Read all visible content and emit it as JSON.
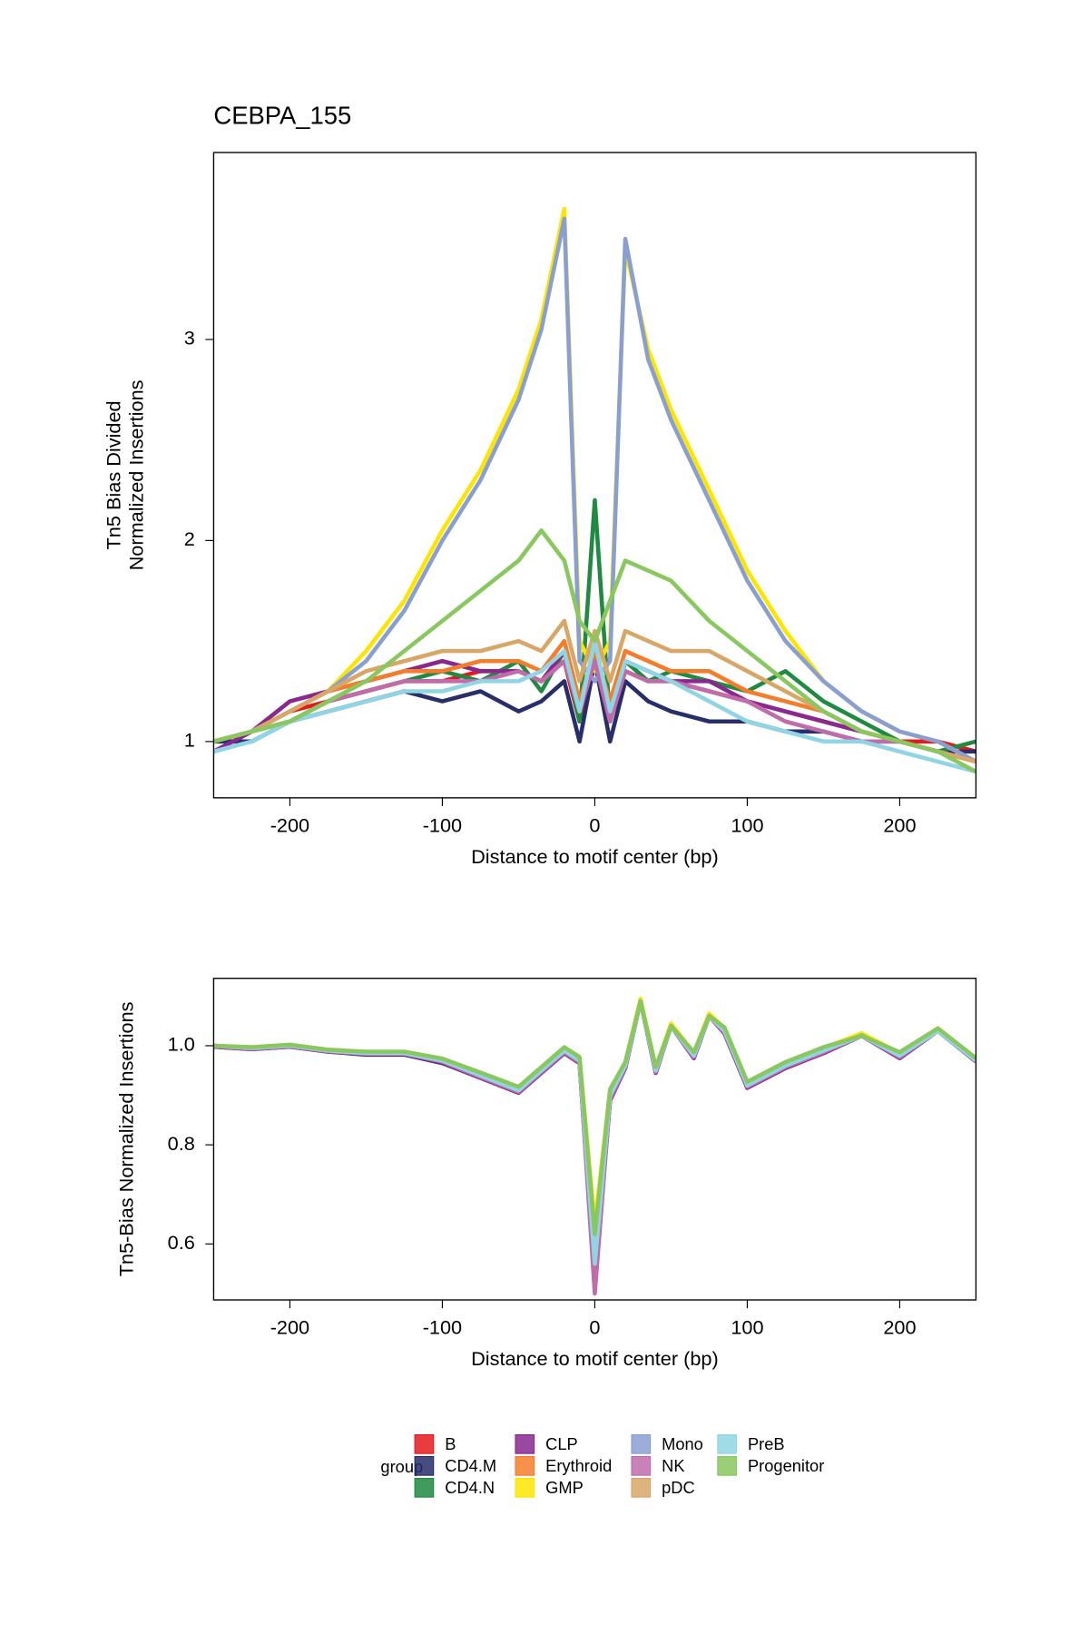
{
  "legend_title": "group",
  "chart_data": [
    {
      "type": "line",
      "title": "CEBPA_155",
      "xlabel": "Distance to motif center (bp)",
      "ylabel": [
        "Tn5 Bias Divided",
        "Normalized Insertions"
      ],
      "x": [
        -250,
        -225,
        -200,
        -175,
        -150,
        -125,
        -100,
        -75,
        -50,
        -35,
        -20,
        -10,
        0,
        10,
        20,
        35,
        50,
        75,
        100,
        125,
        150,
        175,
        200,
        225,
        250
      ],
      "xlim": [
        -250,
        250
      ],
      "xticks": [
        -200,
        -100,
        0,
        100,
        200
      ],
      "ylim": [
        0.72,
        3.93
      ],
      "yticks": [
        1,
        2,
        3
      ],
      "series": [
        {
          "name": "B",
          "color": "#e41a1c",
          "values": [
            1.0,
            1.05,
            1.15,
            1.2,
            1.25,
            1.3,
            1.3,
            1.35,
            1.35,
            1.3,
            1.4,
            1.1,
            1.45,
            1.1,
            1.35,
            1.3,
            1.3,
            1.25,
            1.2,
            1.15,
            1.1,
            1.05,
            1.0,
            1.0,
            0.95
          ]
        },
        {
          "name": "CD4.M",
          "color": "#272e6a",
          "values": [
            1.0,
            1.0,
            1.1,
            1.15,
            1.2,
            1.25,
            1.2,
            1.25,
            1.15,
            1.2,
            1.3,
            1.0,
            1.4,
            1.0,
            1.3,
            1.2,
            1.15,
            1.1,
            1.1,
            1.05,
            1.05,
            1.0,
            1.0,
            0.95,
            0.95
          ]
        },
        {
          "name": "CD4.N",
          "color": "#208a42",
          "values": [
            1.0,
            1.05,
            1.1,
            1.2,
            1.25,
            1.3,
            1.35,
            1.3,
            1.4,
            1.25,
            1.45,
            1.1,
            2.2,
            1.1,
            1.4,
            1.3,
            1.35,
            1.3,
            1.25,
            1.35,
            1.2,
            1.1,
            1.0,
            0.95,
            1.0
          ]
        },
        {
          "name": "CLP",
          "color": "#89288f",
          "values": [
            0.95,
            1.05,
            1.2,
            1.25,
            1.3,
            1.35,
            1.4,
            1.35,
            1.35,
            1.3,
            1.45,
            1.15,
            1.4,
            1.1,
            1.4,
            1.35,
            1.3,
            1.3,
            1.2,
            1.15,
            1.1,
            1.05,
            1.0,
            0.95,
            0.9
          ]
        },
        {
          "name": "Erythroid",
          "color": "#f47d2b",
          "values": [
            1.0,
            1.05,
            1.15,
            1.25,
            1.3,
            1.35,
            1.35,
            1.4,
            1.4,
            1.35,
            1.5,
            1.2,
            1.45,
            1.2,
            1.45,
            1.4,
            1.35,
            1.35,
            1.25,
            1.2,
            1.15,
            1.05,
            1.0,
            0.95,
            0.9
          ]
        },
        {
          "name": "GMP",
          "color": "#fee500",
          "values": [
            1.0,
            1.05,
            1.15,
            1.25,
            1.45,
            1.7,
            2.05,
            2.35,
            2.75,
            3.1,
            3.65,
            1.5,
            1.35,
            1.5,
            3.45,
            2.95,
            2.65,
            2.25,
            1.85,
            1.55,
            1.3,
            1.15,
            1.05,
            1.0,
            0.9
          ]
        },
        {
          "name": "Mono",
          "color": "#8a9fd1",
          "values": [
            1.0,
            1.05,
            1.15,
            1.25,
            1.4,
            1.65,
            2.0,
            2.3,
            2.7,
            3.05,
            3.6,
            1.4,
            1.3,
            1.4,
            3.5,
            2.9,
            2.6,
            2.2,
            1.8,
            1.5,
            1.3,
            1.15,
            1.05,
            1.0,
            0.9
          ]
        },
        {
          "name": "NK",
          "color": "#c06caa",
          "values": [
            1.0,
            1.05,
            1.1,
            1.2,
            1.25,
            1.3,
            1.3,
            1.3,
            1.35,
            1.3,
            1.4,
            1.15,
            1.4,
            1.1,
            1.35,
            1.3,
            1.3,
            1.25,
            1.2,
            1.1,
            1.05,
            1.0,
            1.0,
            0.95,
            0.9
          ]
        },
        {
          "name": "pDC",
          "color": "#d8a767",
          "values": [
            1.0,
            1.05,
            1.15,
            1.25,
            1.35,
            1.4,
            1.45,
            1.45,
            1.5,
            1.45,
            1.6,
            1.3,
            1.55,
            1.3,
            1.55,
            1.5,
            1.45,
            1.45,
            1.35,
            1.25,
            1.15,
            1.05,
            1.0,
            0.95,
            0.9
          ]
        },
        {
          "name": "PreB",
          "color": "#90d5e4",
          "values": [
            0.95,
            1.0,
            1.1,
            1.15,
            1.2,
            1.25,
            1.25,
            1.3,
            1.3,
            1.35,
            1.45,
            1.15,
            1.5,
            1.15,
            1.4,
            1.35,
            1.3,
            1.2,
            1.1,
            1.05,
            1.0,
            1.0,
            0.95,
            0.9,
            0.85
          ]
        },
        {
          "name": "Progenitor",
          "color": "#89c75f",
          "values": [
            1.0,
            1.05,
            1.1,
            1.2,
            1.3,
            1.45,
            1.6,
            1.75,
            1.9,
            2.05,
            1.9,
            1.6,
            1.5,
            1.7,
            1.9,
            1.85,
            1.8,
            1.6,
            1.45,
            1.3,
            1.15,
            1.05,
            1.0,
            0.95,
            0.85
          ]
        }
      ]
    },
    {
      "type": "line",
      "xlabel": "Distance to motif center (bp)",
      "ylabel": [
        "Tn5-Bias Normalized Insertions"
      ],
      "x": [
        -250,
        -225,
        -200,
        -175,
        -150,
        -125,
        -100,
        -75,
        -50,
        -35,
        -20,
        -10,
        0,
        10,
        20,
        30,
        40,
        50,
        65,
        75,
        85,
        100,
        125,
        150,
        175,
        200,
        225,
        250
      ],
      "xlim": [
        -250,
        250
      ],
      "xticks": [
        -200,
        -100,
        0,
        100,
        200
      ],
      "ylim": [
        0.487,
        1.136
      ],
      "yticks": [
        {
          "value": 0.6,
          "label": "0.6"
        },
        {
          "value": 0.8,
          "label": "0.8"
        },
        {
          "value": 1.0,
          "label": "1.0"
        }
      ],
      "series": [
        {
          "name": "B",
          "color": "#e41a1c",
          "values": [
            1.0,
            0.995,
            1.0,
            0.99,
            0.985,
            0.985,
            0.97,
            0.94,
            0.91,
            0.95,
            0.99,
            0.97,
            0.55,
            0.9,
            0.96,
            1.09,
            0.95,
            1.04,
            0.98,
            1.06,
            1.03,
            0.92,
            0.96,
            0.99,
            1.02,
            0.98,
            1.03,
            0.97
          ]
        },
        {
          "name": "CD4.M",
          "color": "#272e6a",
          "values": [
            0.998,
            0.993,
            0.998,
            0.988,
            0.982,
            0.982,
            0.965,
            0.935,
            0.905,
            0.945,
            0.985,
            0.965,
            0.53,
            0.89,
            0.955,
            1.09,
            0.945,
            1.04,
            0.975,
            1.06,
            1.025,
            0.915,
            0.955,
            0.985,
            1.02,
            0.975,
            1.03,
            0.968
          ]
        },
        {
          "name": "CD4.N",
          "color": "#208a42",
          "values": [
            1.0,
            0.995,
            1.0,
            0.99,
            0.985,
            0.985,
            0.97,
            0.94,
            0.91,
            0.95,
            0.99,
            0.97,
            0.55,
            0.9,
            0.96,
            1.09,
            0.95,
            1.04,
            0.98,
            1.06,
            1.03,
            0.92,
            0.96,
            0.99,
            1.02,
            0.98,
            1.03,
            0.97
          ]
        },
        {
          "name": "CLP",
          "color": "#89288f",
          "values": [
            0.998,
            0.993,
            0.998,
            0.988,
            0.983,
            0.983,
            0.966,
            0.935,
            0.905,
            0.945,
            0.985,
            0.965,
            0.52,
            0.89,
            0.955,
            1.09,
            0.945,
            1.04,
            0.975,
            1.06,
            1.025,
            0.915,
            0.955,
            0.985,
            1.02,
            0.975,
            1.03,
            0.968
          ]
        },
        {
          "name": "Erythroid",
          "color": "#f47d2b",
          "values": [
            1.0,
            0.996,
            1.001,
            0.991,
            0.986,
            0.986,
            0.972,
            0.942,
            0.912,
            0.952,
            0.992,
            0.972,
            0.6,
            0.905,
            0.962,
            1.09,
            0.952,
            1.04,
            0.982,
            1.06,
            1.032,
            0.922,
            0.962,
            0.992,
            1.02,
            0.982,
            1.03,
            0.972
          ]
        },
        {
          "name": "GMP",
          "color": "#fee500",
          "values": [
            1.0,
            0.997,
            1.002,
            0.992,
            0.987,
            0.987,
            0.973,
            0.944,
            0.915,
            0.955,
            0.995,
            0.975,
            0.64,
            0.91,
            0.965,
            1.095,
            0.955,
            1.045,
            0.985,
            1.065,
            1.035,
            0.925,
            0.965,
            0.995,
            1.025,
            0.985,
            1.035,
            0.973
          ]
        },
        {
          "name": "Mono",
          "color": "#8a9fd1",
          "values": [
            1.0,
            0.996,
            1.001,
            0.991,
            0.986,
            0.986,
            0.971,
            0.941,
            0.911,
            0.951,
            0.991,
            0.971,
            0.58,
            0.902,
            0.961,
            1.09,
            0.951,
            1.04,
            0.981,
            1.06,
            1.031,
            0.921,
            0.961,
            0.991,
            1.021,
            0.981,
            1.031,
            0.971
          ]
        },
        {
          "name": "NK",
          "color": "#c06caa",
          "values": [
            0.999,
            0.994,
            0.999,
            0.989,
            0.984,
            0.984,
            0.968,
            0.937,
            0.907,
            0.947,
            0.987,
            0.967,
            0.5,
            0.893,
            0.957,
            1.09,
            0.947,
            1.04,
            0.977,
            1.06,
            1.027,
            0.917,
            0.957,
            0.987,
            1.02,
            0.977,
            1.03,
            0.969
          ]
        },
        {
          "name": "pDC",
          "color": "#d8a767",
          "values": [
            1.0,
            0.996,
            1.001,
            0.991,
            0.986,
            0.986,
            0.971,
            0.941,
            0.912,
            0.952,
            0.992,
            0.972,
            0.6,
            0.904,
            0.962,
            1.09,
            0.952,
            1.04,
            0.982,
            1.06,
            1.032,
            0.922,
            0.962,
            0.992,
            1.02,
            0.982,
            1.03,
            0.972
          ]
        },
        {
          "name": "PreB",
          "color": "#90d5e4",
          "values": [
            1.0,
            0.995,
            1.0,
            0.99,
            0.985,
            0.985,
            0.97,
            0.94,
            0.91,
            0.95,
            0.99,
            0.97,
            0.56,
            0.9,
            0.96,
            1.09,
            0.95,
            1.04,
            0.98,
            1.06,
            1.03,
            0.92,
            0.96,
            0.99,
            1.02,
            0.98,
            1.03,
            0.97
          ]
        },
        {
          "name": "Progenitor",
          "color": "#89c75f",
          "values": [
            1.0,
            0.997,
            1.002,
            0.992,
            0.988,
            0.988,
            0.974,
            0.946,
            0.917,
            0.957,
            0.997,
            0.977,
            0.62,
            0.912,
            0.967,
            1.09,
            0.957,
            1.04,
            0.987,
            1.06,
            1.037,
            0.927,
            0.967,
            0.997,
            1.02,
            0.987,
            1.035,
            0.975
          ]
        }
      ]
    }
  ]
}
